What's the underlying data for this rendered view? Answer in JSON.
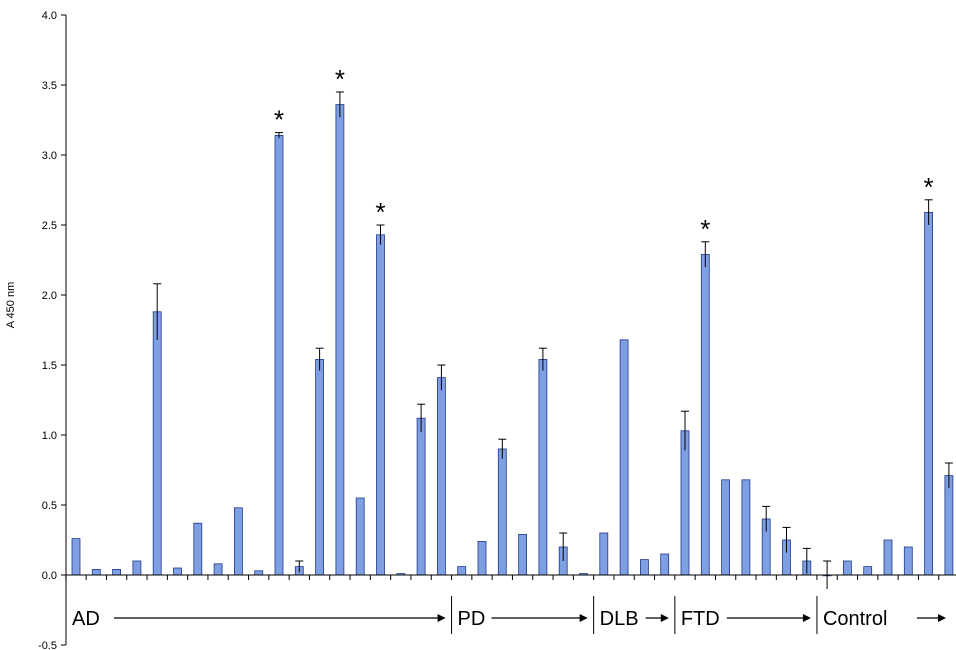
{
  "chart_data": {
    "type": "bar",
    "title": "",
    "xlabel": "",
    "ylabel": "A 450 nm",
    "ylim": [
      -0.5,
      4.0
    ],
    "yticks": [
      "4.0",
      "3.5",
      "3.0",
      "2.5",
      "2.0",
      "1.5",
      "1.0",
      "0.5",
      "0.0",
      "-0.5"
    ],
    "bar_color": "#7f9fe3",
    "bar_edge_color": "#1f3a8a",
    "values": [
      0.26,
      0.04,
      0.04,
      0.1,
      1.88,
      0.05,
      0.37,
      0.08,
      0.48,
      0.03,
      3.14,
      0.06,
      1.54,
      3.36,
      0.55,
      2.43,
      0.01,
      1.12,
      1.41,
      0.06,
      0.24,
      0.9,
      0.29,
      1.54,
      0.2,
      0.01,
      0.3,
      1.68,
      0.11,
      0.15,
      1.03,
      2.29,
      0.68,
      0.68,
      0.4,
      0.25,
      0.1,
      0.0,
      0.1,
      0.06,
      0.25,
      0.2,
      2.59,
      0.71
    ],
    "errors": [
      0,
      0,
      0,
      0,
      0.2,
      0,
      0,
      0,
      0,
      0,
      0.02,
      0.04,
      0.08,
      0.09,
      0,
      0.07,
      0,
      0.1,
      0.09,
      0,
      0,
      0.07,
      0,
      0.08,
      0.1,
      0,
      0,
      0,
      0,
      0,
      0.14,
      0.09,
      0,
      0,
      0.09,
      0.09,
      0.09,
      0.1,
      0,
      0,
      0,
      0,
      0.09,
      0.09
    ],
    "significant_marker": "*",
    "significant_indices": [
      10,
      13,
      15,
      31,
      42
    ],
    "groups": [
      {
        "label": "AD",
        "start": 0,
        "end": 18
      },
      {
        "label": "PD",
        "start": 19,
        "end": 25
      },
      {
        "label": "DLB",
        "start": 26,
        "end": 29
      },
      {
        "label": "FTD",
        "start": 30,
        "end": 36
      },
      {
        "label": "Control",
        "start": 37,
        "end": 43
      }
    ]
  }
}
